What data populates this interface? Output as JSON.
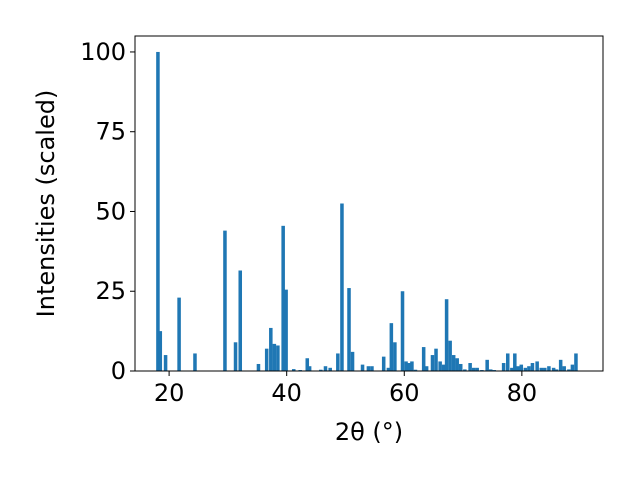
{
  "chart_data": {
    "type": "bar",
    "xlabel": "2θ (°)",
    "ylabel": "Intensities (scaled)",
    "xlim": [
      14.2,
      93.8
    ],
    "ylim": [
      0,
      105
    ],
    "xticks": [
      20,
      40,
      60,
      80
    ],
    "yticks": [
      0,
      25,
      50,
      75,
      100
    ],
    "bar_color": "#1f77b4",
    "bar_width": 0.6,
    "grid": false,
    "x": [
      18.1,
      18.5,
      19.4,
      21.7,
      24.4,
      29.5,
      31.3,
      32.1,
      35.2,
      36.6,
      37.3,
      37.9,
      38.5,
      39.4,
      39.9,
      41.2,
      42.3,
      43.5,
      43.9,
      45.8,
      46.6,
      47.4,
      48.7,
      49.4,
      50.6,
      51.2,
      52.9,
      53.9,
      54.5,
      56.5,
      57.3,
      57.8,
      58.4,
      59.7,
      60.3,
      60.8,
      61.3,
      61.9,
      63.3,
      63.8,
      64.8,
      65.4,
      66.1,
      66.7,
      67.2,
      67.8,
      68.4,
      69.0,
      69.6,
      70.3,
      71.2,
      71.8,
      72.4,
      73.2,
      74.1,
      74.7,
      75.3,
      76.9,
      77.6,
      78.3,
      78.8,
      79.3,
      79.9,
      80.6,
      81.2,
      81.8,
      82.6,
      83.3,
      83.9,
      84.6,
      85.4,
      85.9,
      86.6,
      87.2,
      88.0,
      88.6,
      89.2
    ],
    "values": [
      100,
      12.5,
      5,
      23,
      5.5,
      44,
      9,
      31.5,
      2.2,
      7,
      13.5,
      8.5,
      8,
      45.5,
      25.5,
      0.6,
      0.3,
      4,
      1.5,
      0.4,
      1.5,
      1,
      5.5,
      52.5,
      26,
      6,
      2,
      1.5,
      1.5,
      4.5,
      1,
      15,
      9,
      25,
      3,
      2.5,
      3,
      0.4,
      7.5,
      1.5,
      5,
      7,
      3,
      2,
      22.5,
      9.5,
      5,
      4,
      2.2,
      0.5,
      2.5,
      1,
      1,
      0.3,
      3.5,
      0.5,
      0.3,
      2.5,
      5.5,
      1,
      5.5,
      1.5,
      2,
      1,
      1.5,
      2.5,
      3,
      1,
      1,
      1.5,
      1,
      0.5,
      3.5,
      1.5,
      0.5,
      2,
      5.5
    ]
  }
}
